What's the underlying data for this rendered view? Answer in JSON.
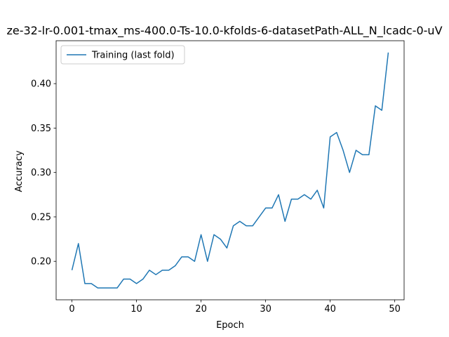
{
  "chart_data": {
    "type": "line",
    "title": "ze-32-lr-0.001-tmax_ms-400.0-Ts-10.0-kfolds-6-datasetPath-ALL_N_lcadc-0-uV",
    "xlabel": "Epoch",
    "ylabel": "Accuracy",
    "xlim": [
      -2.45,
      51.45
    ],
    "ylim": [
      0.1567,
      0.4483
    ],
    "xticks": [
      0,
      10,
      20,
      30,
      40,
      50
    ],
    "yticks": [
      0.2,
      0.25,
      0.3,
      0.35,
      0.4
    ],
    "ytick_labels": [
      "0.20",
      "0.25",
      "0.30",
      "0.35",
      "0.40"
    ],
    "grid": false,
    "legend_position": "top-left",
    "series": [
      {
        "name": "Training (last fold)",
        "color": "#1f77b4",
        "x": [
          0,
          1,
          2,
          3,
          4,
          5,
          6,
          7,
          8,
          9,
          10,
          11,
          12,
          13,
          14,
          15,
          16,
          17,
          18,
          19,
          20,
          21,
          22,
          23,
          24,
          25,
          26,
          27,
          28,
          29,
          30,
          31,
          32,
          33,
          34,
          35,
          36,
          37,
          38,
          39,
          40,
          41,
          42,
          43,
          44,
          45,
          46,
          47,
          48,
          49
        ],
        "values": [
          0.19,
          0.22,
          0.175,
          0.175,
          0.17,
          0.17,
          0.17,
          0.17,
          0.18,
          0.18,
          0.175,
          0.18,
          0.19,
          0.185,
          0.19,
          0.19,
          0.195,
          0.205,
          0.205,
          0.2,
          0.23,
          0.2,
          0.23,
          0.225,
          0.215,
          0.24,
          0.245,
          0.24,
          0.24,
          0.25,
          0.26,
          0.26,
          0.275,
          0.245,
          0.27,
          0.27,
          0.275,
          0.27,
          0.28,
          0.26,
          0.34,
          0.345,
          0.325,
          0.3,
          0.325,
          0.32,
          0.32,
          0.375,
          0.37,
          0.435
        ]
      }
    ]
  }
}
